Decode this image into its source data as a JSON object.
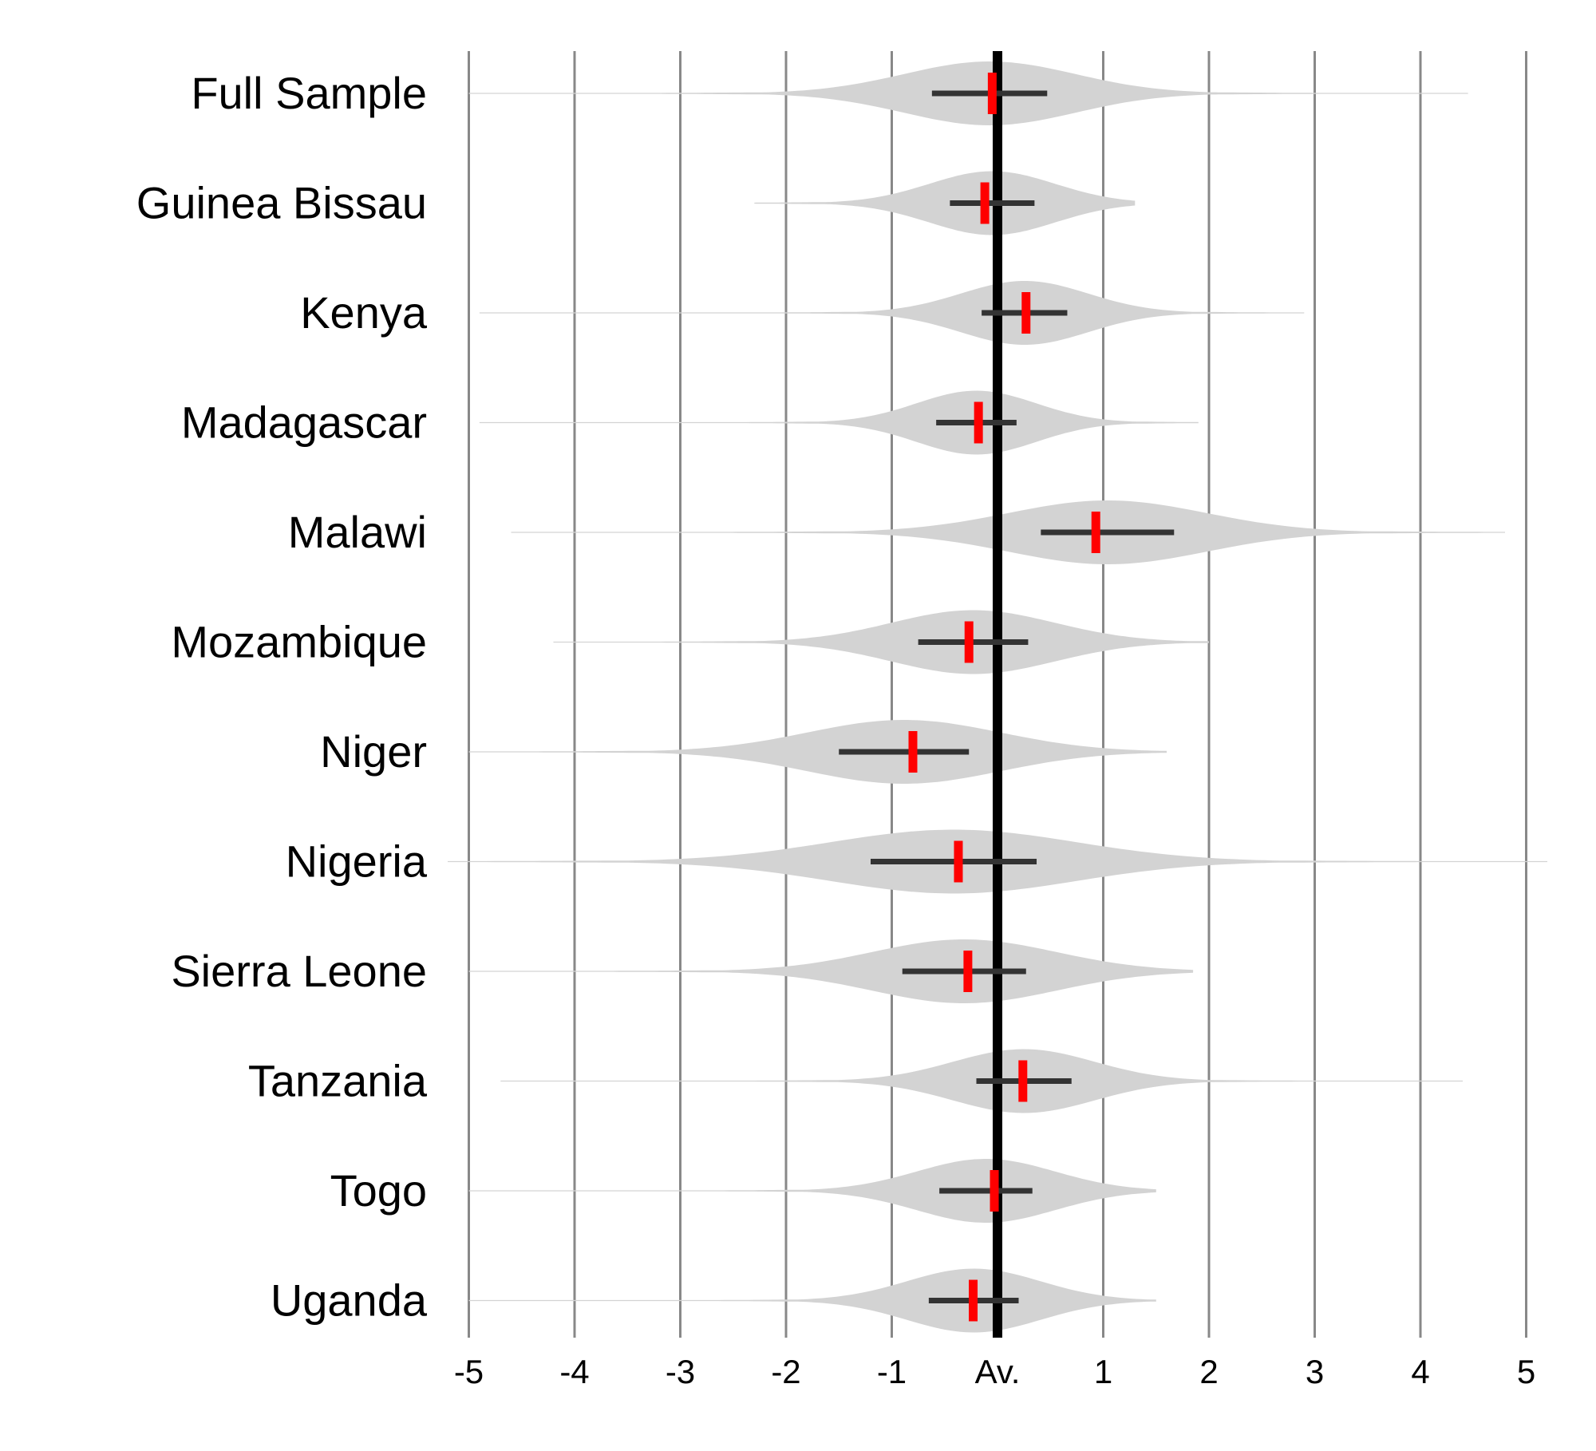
{
  "chart_data": {
    "type": "violin",
    "title": "",
    "xlabel": "",
    "ylabel": "",
    "xlim": [
      -5,
      5
    ],
    "x_ticks": [
      -5,
      -4,
      -3,
      -2,
      -1,
      0,
      1,
      2,
      3,
      4,
      5
    ],
    "x_tick_labels": [
      "-5",
      "-4",
      "-3",
      "-2",
      "-1",
      "Av.",
      "1",
      "2",
      "3",
      "4",
      "5"
    ],
    "reference_line": 0,
    "grid": true,
    "colors": {
      "violin": "#d3d3d3",
      "interval": "#333333",
      "point": "#ff0000",
      "reference": "#000000",
      "grid": "#888888"
    },
    "categories": [
      "Full Sample",
      "Guinea Bissau",
      "Kenya",
      "Madagascar",
      "Malawi",
      "Mozambique",
      "Niger",
      "Nigeria",
      "Sierra Leone",
      "Tanzania",
      "Togo",
      "Uganda"
    ],
    "series": [
      {
        "category": "Full Sample",
        "point": -0.05,
        "interval": [
          -0.62,
          0.47
        ],
        "range": [
          -5.0,
          4.45
        ]
      },
      {
        "category": "Guinea Bissau",
        "point": -0.12,
        "interval": [
          -0.45,
          0.35
        ],
        "range": [
          -2.3,
          1.3
        ]
      },
      {
        "category": "Kenya",
        "point": 0.27,
        "interval": [
          -0.15,
          0.66
        ],
        "range": [
          -4.9,
          2.9
        ]
      },
      {
        "category": "Madagascar",
        "point": -0.18,
        "interval": [
          -0.58,
          0.18
        ],
        "range": [
          -4.9,
          1.9
        ]
      },
      {
        "category": "Malawi",
        "point": 0.93,
        "interval": [
          0.41,
          1.67
        ],
        "range": [
          -4.6,
          4.8
        ]
      },
      {
        "category": "Mozambique",
        "point": -0.27,
        "interval": [
          -0.75,
          0.29
        ],
        "range": [
          -4.2,
          2.0
        ]
      },
      {
        "category": "Niger",
        "point": -0.8,
        "interval": [
          -1.5,
          -0.27
        ],
        "range": [
          -5.0,
          1.6
        ]
      },
      {
        "category": "Nigeria",
        "point": -0.37,
        "interval": [
          -1.2,
          0.37
        ],
        "range": [
          -5.2,
          5.2
        ]
      },
      {
        "category": "Sierra Leone",
        "point": -0.28,
        "interval": [
          -0.9,
          0.27
        ],
        "range": [
          -5.0,
          1.85
        ]
      },
      {
        "category": "Tanzania",
        "point": 0.24,
        "interval": [
          -0.2,
          0.7
        ],
        "range": [
          -4.7,
          4.4
        ]
      },
      {
        "category": "Togo",
        "point": -0.03,
        "interval": [
          -0.55,
          0.33
        ],
        "range": [
          -5.0,
          1.5
        ]
      },
      {
        "category": "Uganda",
        "point": -0.23,
        "interval": [
          -0.65,
          0.2
        ],
        "range": [
          -5.0,
          1.5
        ]
      }
    ]
  }
}
